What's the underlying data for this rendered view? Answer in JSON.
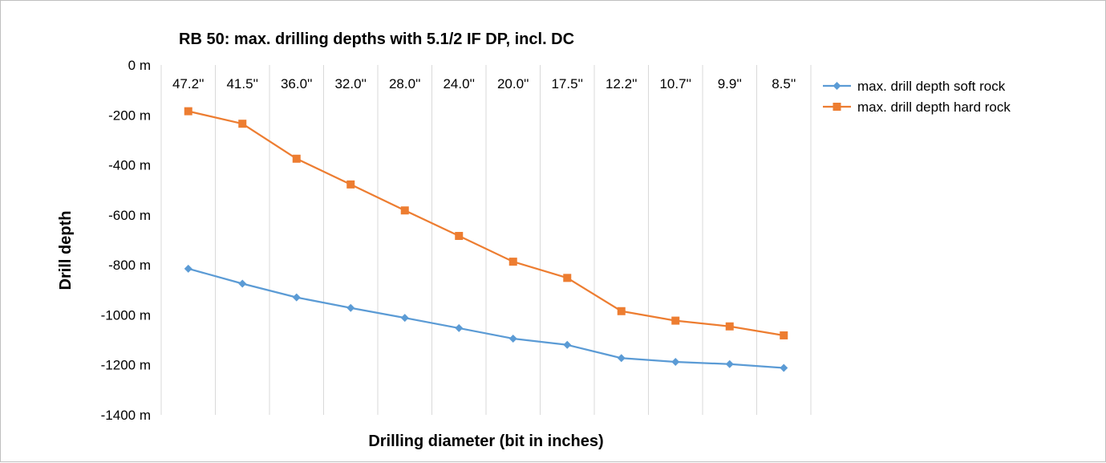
{
  "chart_data": {
    "type": "line",
    "title": "RB 50: max. drilling depths with 5.1/2 IF DP, incl. DC",
    "xlabel": "Drilling diameter (bit in inches)",
    "ylabel": "Drill depth",
    "categories": [
      "47.2''",
      "41.5''",
      "36.0''",
      "32.0''",
      "28.0''",
      "24.0''",
      "20.0''",
      "17.5''",
      "12.2''",
      "10.7''",
      "9.9''",
      "8.5''"
    ],
    "ylim": [
      -1400,
      0
    ],
    "ytick_values": [
      0,
      -200,
      -400,
      -600,
      -800,
      -1000,
      -1200,
      -1400
    ],
    "ytick_labels": [
      "0 m",
      "-200 m",
      "-400 m",
      "-600 m",
      "-800 m",
      "-1000 m",
      "-1200 m",
      "-1400 m"
    ],
    "grid": "vertical",
    "legend_position": "right",
    "series": [
      {
        "name": "max. drill depth soft rock",
        "color": "#5b9bd5",
        "marker": "diamond",
        "values": [
          -815,
          -875,
          -930,
          -972,
          -1012,
          -1053,
          -1095,
          -1120,
          -1173,
          -1188,
          -1197,
          -1212
        ]
      },
      {
        "name": "max. drill depth hard rock",
        "color": "#ed7d31",
        "marker": "square",
        "values": [
          -185,
          -235,
          -375,
          -478,
          -582,
          -684,
          -787,
          -852,
          -985,
          -1023,
          -1046,
          -1082
        ]
      }
    ]
  }
}
